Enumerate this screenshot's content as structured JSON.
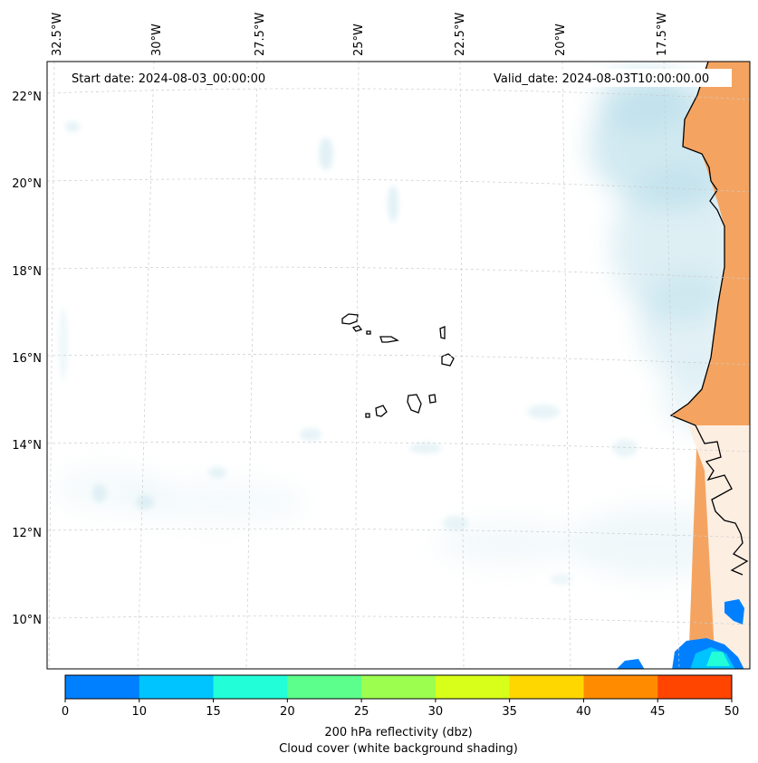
{
  "map": {
    "start_date": "Start date: 2024-08-03_00:00:00",
    "valid_date": "Valid_date: 2024-08-03T10:00:00.00",
    "lon_labels": [
      "32.5°W",
      "30°W",
      "27.5°W",
      "25°W",
      "22.5°W",
      "20°W",
      "17.5°W"
    ],
    "lat_labels": [
      "22°N",
      "20°N",
      "18°N",
      "16°N",
      "14°N",
      "12°N",
      "10°N"
    ],
    "land_color": "#f4a460",
    "coast_color": "#000000",
    "cloud_color": "#add8e6",
    "gridline_color": "#cccccc"
  },
  "colorbar": {
    "label_line1": "200 hPa reflectivity (dbz)",
    "label_line2": "Cloud cover (white background shading)",
    "ticks": [
      "0",
      "10",
      "15",
      "20",
      "25",
      "30",
      "35",
      "40",
      "45",
      "50"
    ],
    "colors": [
      "#0080ff",
      "#00c4ff",
      "#22ffd8",
      "#5cff8c",
      "#9cff50",
      "#d8ff1a",
      "#ffd700",
      "#ff8c00",
      "#ff4500"
    ]
  }
}
